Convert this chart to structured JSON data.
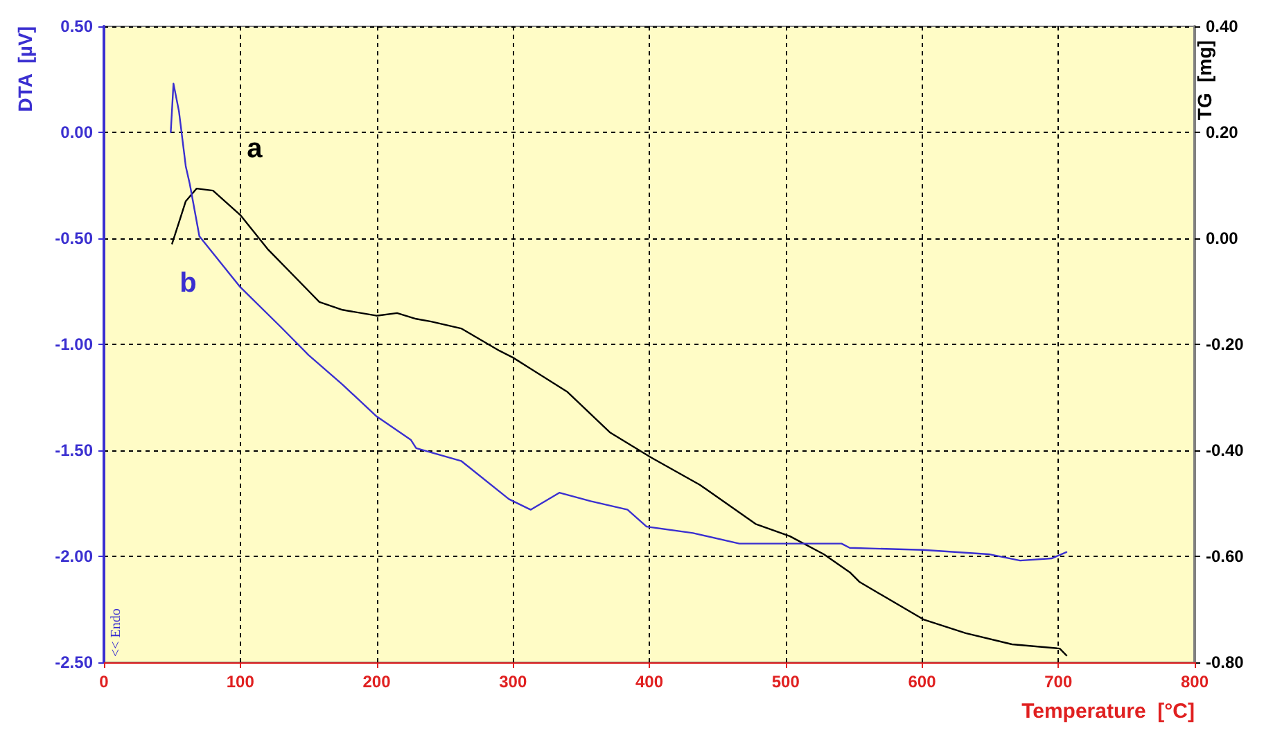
{
  "chart_data": {
    "type": "line",
    "xlabel": "Temperature  [°C]",
    "ylabel": "DTA  [µV]",
    "y2label": "TG  [mg]",
    "xlim": [
      0,
      800
    ],
    "xticks": [
      0,
      100,
      200,
      300,
      400,
      500,
      600,
      700,
      800
    ],
    "ylim": [
      -2.5,
      0.5
    ],
    "yticks": [
      {
        "value": -2.5,
        "label": "-2.50"
      },
      {
        "value": -2,
        "label": "-2.00"
      },
      {
        "value": -1.5,
        "label": "-1.50"
      },
      {
        "value": -1,
        "label": "-1.00"
      },
      {
        "value": -0.5,
        "label": "-0.50"
      },
      {
        "value": 0,
        "label": "0.00"
      },
      {
        "value": 0.5,
        "label": "0.50"
      }
    ],
    "y2lim": [
      -0.8,
      0.4
    ],
    "y2ticks": [
      {
        "value": -0.8,
        "label": "-0.80"
      },
      {
        "value": -0.6,
        "label": "-0.60"
      },
      {
        "value": -0.4,
        "label": "-0.40"
      },
      {
        "value": -0.2,
        "label": "-0.20"
      },
      {
        "value": 0,
        "label": "0.00"
      },
      {
        "value": 0.2,
        "label": "0.20"
      },
      {
        "value": 0.4,
        "label": "0.40"
      }
    ],
    "grid": true,
    "marker": "none",
    "line_style": "solid",
    "series": [
      {
        "name": "a",
        "axis": "y2",
        "color": "#000000",
        "x": [
          50,
          55,
          60,
          68,
          80,
          100,
          120,
          150,
          158,
          175,
          200,
          215,
          229,
          240,
          262,
          290,
          300,
          340,
          371,
          401,
          437,
          478,
          503,
          528,
          547,
          554,
          601,
          632,
          666,
          701,
          706
        ],
        "values": [
          -0.01,
          0.03,
          0.07,
          0.094,
          0.09,
          0.044,
          -0.02,
          -0.099,
          -0.12,
          -0.135,
          -0.146,
          -0.141,
          -0.152,
          -0.157,
          -0.17,
          -0.212,
          -0.225,
          -0.29,
          -0.366,
          -0.413,
          -0.465,
          -0.539,
          -0.562,
          -0.596,
          -0.63,
          -0.648,
          -0.719,
          -0.745,
          -0.766,
          -0.774,
          -0.787
        ]
      },
      {
        "name": "b",
        "color": "#3a2fd0",
        "x": [
          49,
          51,
          55,
          60,
          63,
          70,
          80,
          100,
          130,
          150,
          175,
          200,
          225,
          229,
          262,
          297,
          313,
          334,
          357,
          384,
          398,
          432,
          466,
          500,
          541,
          547,
          601,
          649,
          672,
          695,
          706
        ],
        "values": [
          0.0,
          0.23,
          0.1,
          -0.16,
          -0.245,
          -0.49,
          -0.57,
          -0.73,
          -0.92,
          -1.05,
          -1.19,
          -1.34,
          -1.45,
          -1.49,
          -1.55,
          -1.73,
          -1.78,
          -1.7,
          -1.74,
          -1.78,
          -1.86,
          -1.89,
          -1.94,
          -1.94,
          -1.94,
          -1.96,
          -1.97,
          -1.99,
          -2.02,
          -2.01,
          -1.98
        ]
      }
    ],
    "annotations": [
      "<< Endo"
    ]
  }
}
